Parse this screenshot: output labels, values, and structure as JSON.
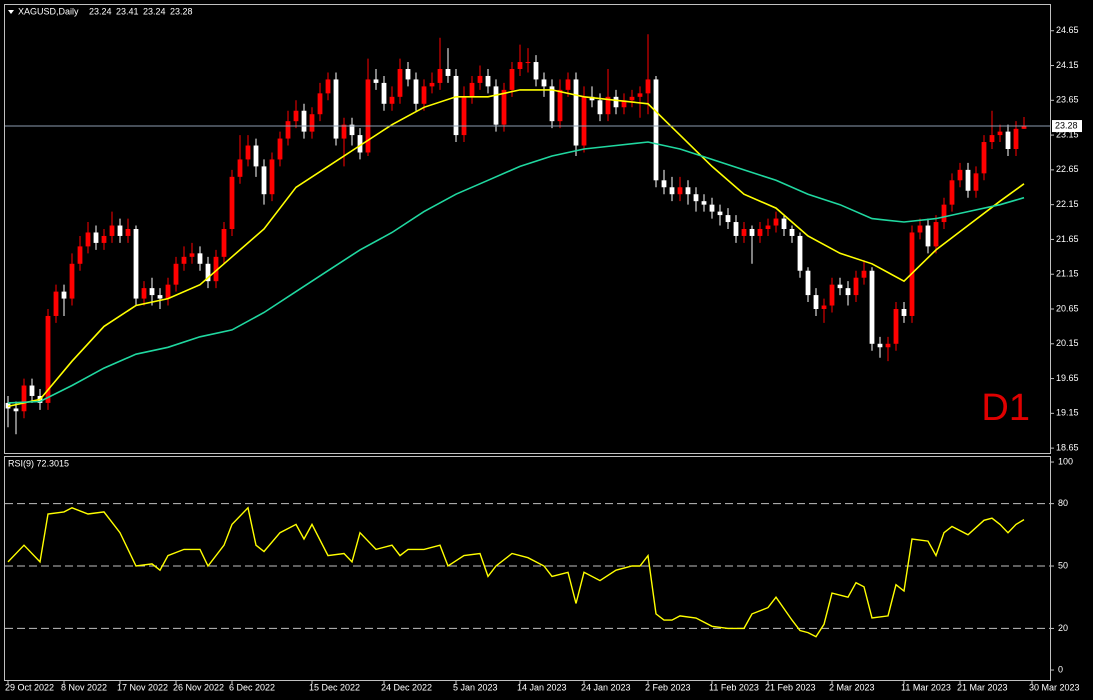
{
  "chart_data": {
    "type": "candlestick",
    "symbol": "XAGUSD,Daily",
    "annotation": "D1",
    "up_color": "#ff0000",
    "down_color": "#ffffff",
    "open": [
      19.3,
      19.22,
      19.18,
      19.55,
      19.4,
      19.3,
      20.55,
      20.9,
      20.8,
      21.3,
      21.55,
      21.75,
      21.6,
      21.7,
      21.85,
      21.7,
      21.8,
      20.8,
      20.95,
      20.85,
      20.8,
      21.0,
      21.3,
      21.4,
      21.45,
      21.3,
      21.05,
      21.4,
      21.8,
      22.55,
      22.8,
      23.0,
      22.7,
      22.3,
      22.8,
      23.1,
      23.35,
      23.5,
      23.2,
      23.45,
      23.75,
      23.95,
      23.1,
      23.3,
      23.15,
      22.9,
      23.95,
      23.9,
      23.6,
      23.7,
      24.1,
      23.95,
      23.6,
      23.85,
      23.9,
      24.1,
      24.0,
      23.15,
      23.7,
      23.9,
      24.0,
      23.85,
      23.3,
      23.8,
      24.1,
      24.2,
      24.2,
      23.95,
      23.85,
      23.35,
      23.8,
      23.95,
      23.0,
      23.7,
      23.65,
      23.45,
      23.7,
      23.55,
      23.65,
      23.7,
      23.75,
      23.95,
      22.5,
      22.4,
      22.3,
      22.4,
      22.3,
      22.2,
      22.15,
      22.05,
      22.0,
      21.9,
      21.7,
      21.8,
      21.7,
      21.8,
      21.85,
      21.95,
      21.8,
      21.7,
      21.2,
      20.85,
      20.65,
      20.7,
      21.0,
      20.95,
      20.85,
      21.1,
      21.2,
      20.15,
      20.1,
      20.15,
      20.65,
      20.55,
      21.75,
      21.85,
      21.55,
      21.9,
      22.15,
      22.5,
      22.65,
      22.35,
      22.6,
      23.05,
      23.15,
      23.2,
      22.95,
      23.24
    ],
    "high": [
      19.4,
      19.32,
      19.65,
      19.65,
      19.5,
      20.65,
      21.0,
      21.0,
      21.45,
      21.7,
      21.9,
      21.85,
      21.8,
      22.05,
      21.95,
      21.95,
      21.85,
      21.05,
      21.1,
      20.95,
      21.1,
      21.4,
      21.55,
      21.6,
      21.55,
      21.4,
      21.5,
      21.9,
      22.65,
      23.15,
      23.15,
      23.1,
      22.8,
      22.9,
      23.2,
      23.5,
      23.65,
      23.6,
      23.55,
      23.9,
      24.05,
      24.05,
      23.4,
      23.4,
      23.25,
      24.25,
      24.1,
      24.0,
      23.85,
      24.25,
      24.2,
      24.05,
      23.95,
      24.05,
      24.55,
      24.4,
      24.1,
      23.85,
      24.0,
      24.15,
      24.1,
      23.95,
      23.9,
      24.2,
      24.45,
      24.4,
      24.3,
      24.05,
      23.95,
      23.95,
      24.05,
      24.05,
      23.85,
      23.85,
      23.75,
      24.1,
      23.8,
      23.75,
      23.8,
      23.85,
      24.6,
      24.0,
      22.65,
      22.55,
      22.55,
      22.5,
      22.4,
      22.3,
      22.25,
      22.15,
      22.1,
      22.0,
      21.9,
      21.85,
      21.9,
      21.95,
      22.05,
      22.0,
      21.85,
      21.75,
      21.25,
      20.95,
      20.8,
      21.1,
      21.1,
      21.05,
      21.2,
      21.35,
      21.25,
      20.25,
      20.25,
      20.75,
      20.75,
      21.85,
      21.95,
      21.95,
      22.0,
      22.25,
      22.6,
      22.75,
      22.75,
      22.7,
      23.15,
      23.5,
      23.3,
      23.3,
      23.35,
      23.41
    ],
    "low": [
      18.95,
      18.85,
      19.08,
      19.3,
      19.2,
      19.2,
      20.45,
      20.55,
      20.7,
      21.2,
      21.45,
      21.5,
      21.5,
      21.6,
      21.6,
      21.6,
      20.7,
      20.7,
      20.7,
      20.65,
      20.7,
      20.9,
      21.2,
      21.3,
      21.2,
      20.95,
      20.95,
      21.3,
      21.7,
      22.45,
      22.7,
      22.55,
      22.15,
      22.2,
      22.7,
      23.0,
      23.25,
      23.1,
      23.1,
      23.35,
      23.65,
      23.0,
      22.7,
      23.0,
      22.8,
      22.85,
      23.8,
      23.5,
      23.5,
      23.6,
      23.85,
      23.5,
      23.5,
      23.75,
      23.8,
      23.9,
      23.05,
      23.05,
      23.6,
      23.8,
      23.75,
      23.2,
      23.2,
      23.7,
      24.0,
      24.05,
      23.85,
      23.7,
      23.25,
      23.25,
      23.7,
      22.85,
      22.9,
      23.55,
      23.35,
      23.35,
      23.45,
      23.45,
      23.55,
      23.4,
      23.45,
      22.4,
      22.3,
      22.2,
      22.2,
      22.15,
      22.05,
      22.05,
      21.95,
      21.85,
      21.8,
      21.6,
      21.6,
      21.3,
      21.6,
      21.7,
      21.75,
      21.7,
      21.6,
      21.1,
      20.75,
      20.55,
      20.45,
      20.6,
      20.85,
      20.7,
      20.75,
      21.0,
      20.05,
      19.95,
      19.9,
      20.05,
      20.45,
      20.45,
      21.65,
      21.45,
      21.45,
      21.8,
      22.05,
      22.4,
      22.25,
      22.25,
      22.5,
      22.95,
      23.05,
      22.85,
      22.85,
      23.24
    ],
    "close": [
      19.22,
      19.18,
      19.55,
      19.4,
      19.3,
      20.55,
      20.9,
      20.8,
      21.3,
      21.55,
      21.75,
      21.6,
      21.7,
      21.85,
      21.7,
      21.8,
      20.8,
      20.95,
      20.85,
      20.8,
      21.0,
      21.3,
      21.4,
      21.45,
      21.3,
      21.05,
      21.4,
      21.8,
      22.55,
      22.8,
      23.0,
      22.7,
      22.3,
      22.8,
      23.1,
      23.35,
      23.5,
      23.2,
      23.45,
      23.75,
      23.95,
      23.1,
      23.3,
      23.15,
      22.9,
      23.95,
      23.9,
      23.6,
      23.7,
      24.1,
      23.95,
      23.6,
      23.85,
      23.9,
      24.1,
      24.0,
      23.15,
      23.7,
      23.9,
      24.0,
      23.85,
      23.3,
      23.8,
      24.1,
      24.2,
      24.2,
      23.95,
      23.85,
      23.35,
      23.8,
      23.95,
      23.0,
      23.7,
      23.65,
      23.45,
      23.7,
      23.55,
      23.65,
      23.7,
      23.75,
      23.95,
      22.5,
      22.4,
      22.3,
      22.4,
      22.3,
      22.2,
      22.15,
      22.05,
      22.0,
      21.9,
      21.7,
      21.8,
      21.7,
      21.8,
      21.85,
      21.95,
      21.8,
      21.7,
      21.2,
      20.85,
      20.65,
      20.7,
      21.0,
      20.95,
      20.85,
      21.1,
      21.2,
      20.15,
      20.1,
      20.15,
      20.65,
      20.55,
      21.75,
      21.85,
      21.55,
      21.9,
      22.15,
      22.5,
      22.65,
      22.35,
      22.6,
      23.05,
      23.15,
      23.2,
      22.95,
      23.24,
      23.28
    ],
    "xlim": [
      -0.5,
      130.25
    ],
    "xticks": [
      {
        "value": 0,
        "label": "29 Oct 2022"
      },
      {
        "value": 7,
        "label": "8 Nov 2022"
      },
      {
        "value": 14,
        "label": "17 Nov 2022"
      },
      {
        "value": 21,
        "label": "26 Nov 2022"
      },
      {
        "value": 28,
        "label": "6 Dec 2022"
      },
      {
        "value": 38,
        "label": "15 Dec 2022"
      },
      {
        "value": 47,
        "label": "24 Dec 2022"
      },
      {
        "value": 56,
        "label": "5 Jan 2023"
      },
      {
        "value": 64,
        "label": "14 Jan 2023"
      },
      {
        "value": 72,
        "label": "24 Jan 2023"
      },
      {
        "value": 80,
        "label": "2 Feb 2023"
      },
      {
        "value": 88,
        "label": "11 Feb 2023"
      },
      {
        "value": 95,
        "label": "21 Feb 2023"
      },
      {
        "value": 103,
        "label": "2 Mar 2023"
      },
      {
        "value": 112,
        "label": "11 Mar 2023"
      },
      {
        "value": 119,
        "label": "21 Mar 2023"
      },
      {
        "value": 128,
        "label": "30 Mar 2023"
      }
    ],
    "ylim": [
      18.58,
      25.02
    ],
    "yticks": [
      18.65,
      19.15,
      19.65,
      20.15,
      20.65,
      21.15,
      21.65,
      22.15,
      22.65,
      23.15,
      23.65,
      24.15,
      24.65
    ],
    "last_price": 23.28,
    "ma_lines": [
      {
        "color": "#ffff00",
        "x": [
          0,
          4,
          8,
          12,
          16,
          20,
          24,
          28,
          32,
          36,
          40,
          44,
          48,
          52,
          56,
          60,
          64,
          68,
          72,
          76,
          80,
          84,
          88,
          92,
          96,
          100,
          104,
          108,
          112,
          116,
          120,
          124,
          127
        ],
        "values": [
          19.25,
          19.35,
          19.9,
          20.4,
          20.7,
          20.8,
          21.0,
          21.4,
          21.8,
          22.4,
          22.7,
          23.0,
          23.3,
          23.55,
          23.7,
          23.7,
          23.8,
          23.8,
          23.7,
          23.65,
          23.6,
          23.15,
          22.7,
          22.3,
          22.1,
          21.7,
          21.45,
          21.3,
          21.05,
          21.5,
          21.85,
          22.2,
          22.45
        ]
      },
      {
        "color": "#20d8a0",
        "x": [
          0,
          4,
          8,
          12,
          16,
          20,
          24,
          28,
          32,
          36,
          40,
          44,
          48,
          52,
          56,
          60,
          64,
          68,
          72,
          76,
          80,
          84,
          88,
          92,
          96,
          100,
          104,
          108,
          112,
          116,
          120,
          124,
          127
        ],
        "values": [
          19.3,
          19.32,
          19.55,
          19.8,
          20.0,
          20.1,
          20.25,
          20.35,
          20.6,
          20.9,
          21.2,
          21.5,
          21.75,
          22.05,
          22.3,
          22.5,
          22.7,
          22.85,
          22.95,
          23.0,
          23.05,
          22.95,
          22.8,
          22.65,
          22.5,
          22.3,
          22.15,
          21.95,
          21.9,
          21.95,
          22.05,
          22.15,
          22.25
        ]
      }
    ],
    "rsi": {
      "type": "line",
      "title": "RSI(9) 72.3015",
      "color": "#ffff00",
      "x": [
        0,
        2,
        4,
        5,
        7,
        8,
        10,
        12,
        14,
        16,
        18,
        19,
        20,
        22,
        24,
        25,
        27,
        28,
        30,
        31,
        32,
        34,
        36,
        37,
        38,
        40,
        42,
        43,
        44,
        46,
        48,
        49,
        50,
        52,
        54,
        55,
        57,
        59,
        60,
        61,
        63,
        65,
        67,
        68,
        70,
        71,
        72,
        74,
        76,
        78,
        79,
        80,
        81,
        82,
        83,
        84,
        86,
        88,
        90,
        92,
        93,
        95,
        96,
        98,
        99,
        100,
        101,
        102,
        103,
        105,
        106,
        107,
        108,
        110,
        111,
        112,
        113,
        115,
        116,
        117,
        118,
        120,
        122,
        123,
        124,
        125,
        126,
        127
      ],
      "values": [
        52,
        60,
        52,
        75,
        76,
        78,
        75,
        76,
        66,
        50,
        51,
        48,
        55,
        58,
        58,
        50,
        60,
        70,
        78,
        60,
        57,
        66,
        70,
        63,
        70,
        55,
        56,
        52,
        66,
        58,
        60,
        55,
        58,
        58,
        60,
        50,
        55,
        56,
        45,
        50,
        56,
        54,
        50,
        45,
        47,
        32,
        47,
        43,
        48,
        50,
        50,
        55,
        27,
        24,
        24,
        26,
        25,
        21,
        20,
        20,
        27,
        30,
        35,
        24,
        19,
        18,
        16,
        22,
        37,
        35,
        42,
        40,
        25,
        26,
        41,
        38,
        63,
        62,
        55,
        66,
        69,
        65,
        72,
        73,
        70,
        66,
        70,
        72.3
      ],
      "ylim": [
        -4.8,
        102.9
      ],
      "yticks": [
        0,
        20,
        50,
        80,
        100
      ],
      "levels": [
        20,
        50,
        80
      ]
    }
  }
}
